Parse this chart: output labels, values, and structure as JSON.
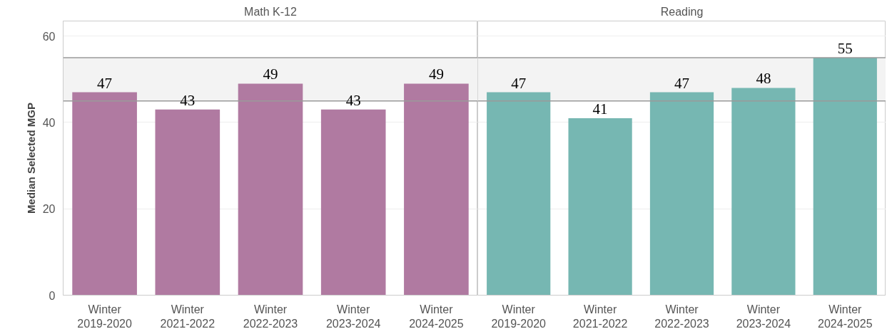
{
  "chart_data": [
    {
      "type": "bar",
      "title": "Math K-12",
      "ylabel": "Median Selected MGP",
      "categories": [
        "Winter\n2019-2020",
        "Winter\n2021-2022",
        "Winter\n2022-2023",
        "Winter\n2023-2024",
        "Winter\n2024-2025"
      ],
      "series": [
        {
          "color": "#b07aa1",
          "values": [
            47,
            43,
            49,
            43,
            49
          ]
        }
      ],
      "ylim": [
        0,
        63.5
      ],
      "yticks": [
        0,
        20,
        40,
        60
      ],
      "grid": "y",
      "data_labels": true,
      "bands": [
        {
          "axis": "y",
          "from": 45,
          "to": 55,
          "color": "#f3f3f3"
        }
      ],
      "ref_lines": [
        {
          "axis": "y",
          "value": 45,
          "color": "#9a9a9a"
        },
        {
          "axis": "y",
          "value": 55,
          "color": "#9a9a9a"
        }
      ]
    },
    {
      "type": "bar",
      "title": "Reading",
      "categories": [
        "Winter\n2019-2020",
        "Winter\n2021-2022",
        "Winter\n2022-2023",
        "Winter\n2023-2024",
        "Winter\n2024-2025"
      ],
      "series": [
        {
          "color": "#76b7b2",
          "values": [
            47,
            41,
            47,
            48,
            55
          ]
        }
      ],
      "ylim": [
        0,
        63.5
      ],
      "yticks": [
        0,
        20,
        40,
        60
      ],
      "grid": "y",
      "data_labels": true,
      "tick_labels": "x",
      "bands": [
        {
          "axis": "y",
          "from": 45,
          "to": 55,
          "color": "#f3f3f3"
        }
      ],
      "ref_lines": [
        {
          "axis": "y",
          "value": 45,
          "color": "#9a9a9a"
        },
        {
          "axis": "y",
          "value": 55,
          "color": "#9a9a9a"
        }
      ]
    }
  ]
}
